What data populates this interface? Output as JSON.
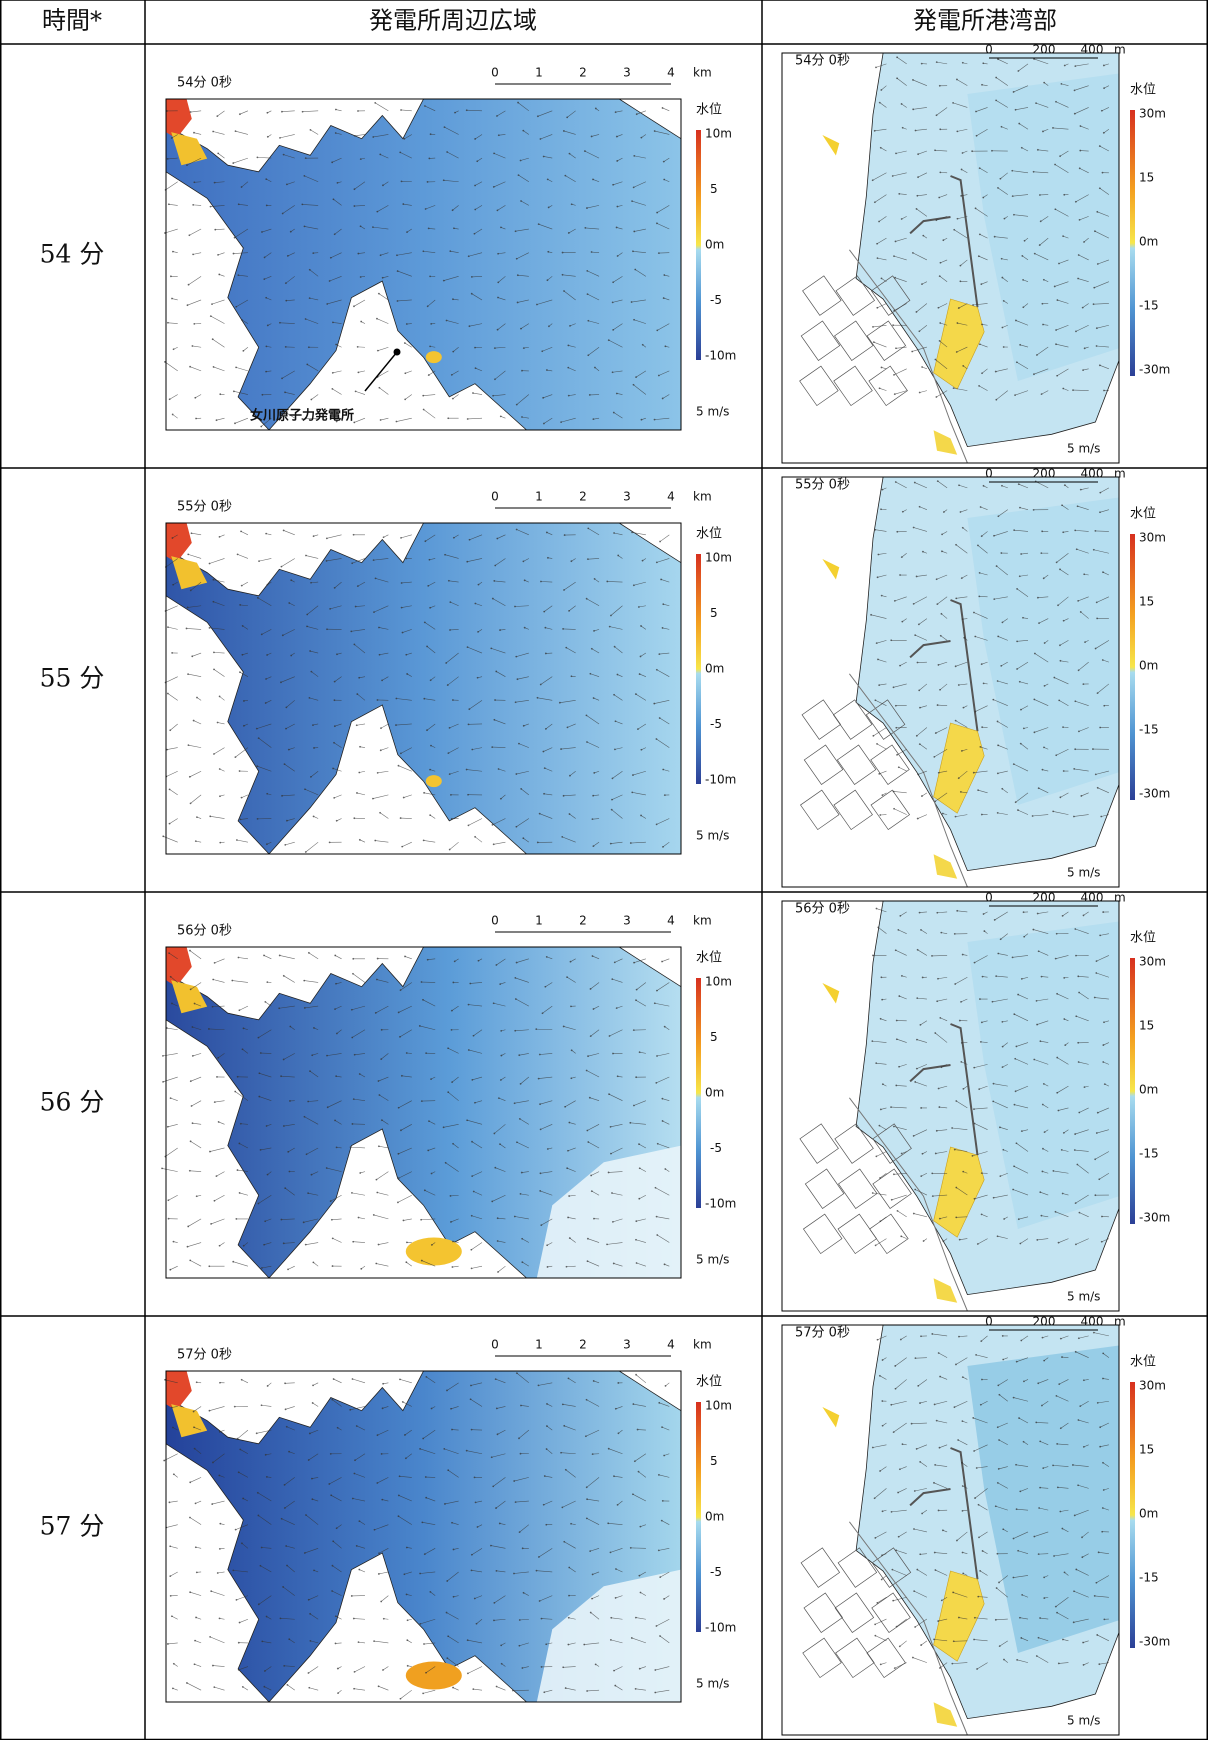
{
  "table": {
    "header": [
      "時間*",
      "発電所周辺広域",
      "発電所港湾部"
    ],
    "rows": [
      {
        "time": "54 分",
        "wide": {
          "timestamp": "54分 0秒",
          "scale": [
            "0",
            "1",
            "2",
            "3",
            "4",
            "km"
          ],
          "legend_title": "水位",
          "legend": [
            "10m",
            "5",
            "0m",
            "-5",
            "-10m"
          ],
          "velocity": "5 m/s",
          "annotation": "女川原子力発電所"
        },
        "harbor": {
          "timestamp": "54分 0秒",
          "scale": [
            "0",
            "200",
            "400",
            "m"
          ],
          "legend_title": "水位",
          "legend": [
            "30m",
            "15",
            "0m",
            "-15",
            "-30m"
          ],
          "velocity": "5 m/s"
        }
      },
      {
        "time": "55 分",
        "wide": {
          "timestamp": "55分 0秒",
          "scale": [
            "0",
            "1",
            "2",
            "3",
            "4",
            "km"
          ],
          "legend_title": "水位",
          "legend": [
            "10m",
            "5",
            "0m",
            "-5",
            "-10m"
          ],
          "velocity": "5 m/s"
        },
        "harbor": {
          "timestamp": "55分 0秒",
          "scale": [
            "0",
            "200",
            "400",
            "m"
          ],
          "legend_title": "水位",
          "legend": [
            "30m",
            "15",
            "0m",
            "-15",
            "-30m"
          ],
          "velocity": "5 m/s"
        }
      },
      {
        "time": "56 分",
        "wide": {
          "timestamp": "56分 0秒",
          "scale": [
            "0",
            "1",
            "2",
            "3",
            "4",
            "km"
          ],
          "legend_title": "水位",
          "legend": [
            "10m",
            "5",
            "0m",
            "-5",
            "-10m"
          ],
          "velocity": "5 m/s"
        },
        "harbor": {
          "timestamp": "56分 0秒",
          "scale": [
            "0",
            "200",
            "400",
            "m"
          ],
          "legend_title": "水位",
          "legend": [
            "30m",
            "15",
            "0m",
            "-15",
            "-30m"
          ],
          "velocity": "5 m/s"
        }
      },
      {
        "time": "57 分",
        "wide": {
          "timestamp": "57分 0秒",
          "scale": [
            "0",
            "1",
            "2",
            "3",
            "4",
            "km"
          ],
          "legend_title": "水位",
          "legend": [
            "10m",
            "5",
            "0m",
            "-5",
            "-10m"
          ],
          "velocity": "5 m/s"
        },
        "harbor": {
          "timestamp": "57分 0秒",
          "scale": [
            "0",
            "200",
            "400",
            "m"
          ],
          "legend_title": "水位",
          "legend": [
            "30m",
            "15",
            "0m",
            "-15",
            "-30m"
          ],
          "velocity": "5 m/s"
        }
      }
    ]
  }
}
